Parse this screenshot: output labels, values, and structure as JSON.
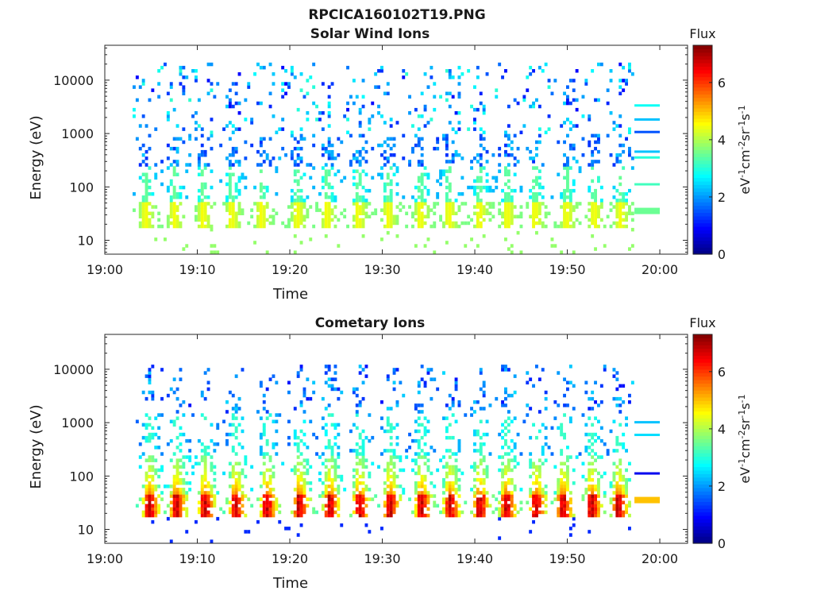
{
  "figure": {
    "title": "RPCICA160102T19.PNG"
  },
  "colorscale": {
    "label": "Flux",
    "unit_main": "eV",
    "unit_parts": [
      {
        "text": "eV",
        "sup": false
      },
      {
        "text": "-1",
        "sup": true
      },
      {
        "text": "cm",
        "sup": false
      },
      {
        "text": "-2",
        "sup": true
      },
      {
        "text": "sr",
        "sup": false
      },
      {
        "text": "-1",
        "sup": true
      },
      {
        "text": "s",
        "sup": false
      },
      {
        "text": "-1",
        "sup": true
      }
    ],
    "min": 0,
    "max": 7.3,
    "ticks": [
      0,
      2,
      4,
      6
    ],
    "tick_labels": [
      "0",
      "2",
      "4",
      "6"
    ]
  },
  "chart_data": [
    {
      "type": "heatmap",
      "title": "Solar Wind Ions",
      "xlabel": "Time",
      "ylabel": "Energy (eV)",
      "x_ticks": [
        "19:00",
        "19:10",
        "19:20",
        "19:30",
        "19:40",
        "19:50",
        "20:00"
      ],
      "x_tick_minutes": [
        0,
        10,
        20,
        30,
        40,
        50,
        60
      ],
      "xlim_minutes": [
        0,
        63
      ],
      "y_scale": "log",
      "ylim": [
        5.5,
        45000
      ],
      "y_ticks": [
        10,
        100,
        1000,
        10000
      ],
      "y_tick_labels": [
        "10",
        "100",
        "1000",
        "10000"
      ],
      "data_range_minutes": [
        3,
        57
      ],
      "peak_flux": 4.5,
      "burst_minutes": [
        4.2,
        7.3,
        10.4,
        13.5,
        16.7,
        20.6,
        23.8,
        27.2,
        30.4,
        33.9,
        37.0,
        40.3,
        43.3,
        46.3,
        49.7,
        52.7,
        55.5
      ],
      "right_edge_lines": [
        {
          "energy": 3300,
          "flux": 2.8
        },
        {
          "energy": 1800,
          "flux": 2.3
        },
        {
          "energy": 1050,
          "flux": 1.5
        },
        {
          "energy": 450,
          "flux": 2.3
        },
        {
          "energy": 350,
          "flux": 3.0
        },
        {
          "energy": 110,
          "flux": 3.2
        },
        {
          "energy": 38,
          "flux": 3.5
        }
      ]
    },
    {
      "type": "heatmap",
      "title": "Cometary Ions",
      "xlabel": "Time",
      "ylabel": "Energy (eV)",
      "x_ticks": [
        "19:00",
        "19:10",
        "19:20",
        "19:30",
        "19:40",
        "19:50",
        "20:00"
      ],
      "x_tick_minutes": [
        0,
        10,
        20,
        30,
        40,
        50,
        60
      ],
      "xlim_minutes": [
        0,
        63
      ],
      "y_scale": "log",
      "ylim": [
        5.5,
        45000
      ],
      "y_ticks": [
        10,
        100,
        1000,
        10000
      ],
      "y_tick_labels": [
        "10",
        "100",
        "1000",
        "10000"
      ],
      "data_range_minutes": [
        3,
        57
      ],
      "peak_flux": 7.0,
      "burst_minutes": [
        4.6,
        7.5,
        10.6,
        13.9,
        17.3,
        20.8,
        24.1,
        27.3,
        30.6,
        34.0,
        37.1,
        40.3,
        43.2,
        46.4,
        49.3,
        52.4,
        55.3
      ],
      "right_edge_lines": [
        {
          "energy": 1000,
          "flux": 2.3
        },
        {
          "energy": 580,
          "flux": 2.5
        },
        {
          "energy": 110,
          "flux": 0.8
        },
        {
          "energy": 38,
          "flux": 5.0
        }
      ]
    }
  ]
}
